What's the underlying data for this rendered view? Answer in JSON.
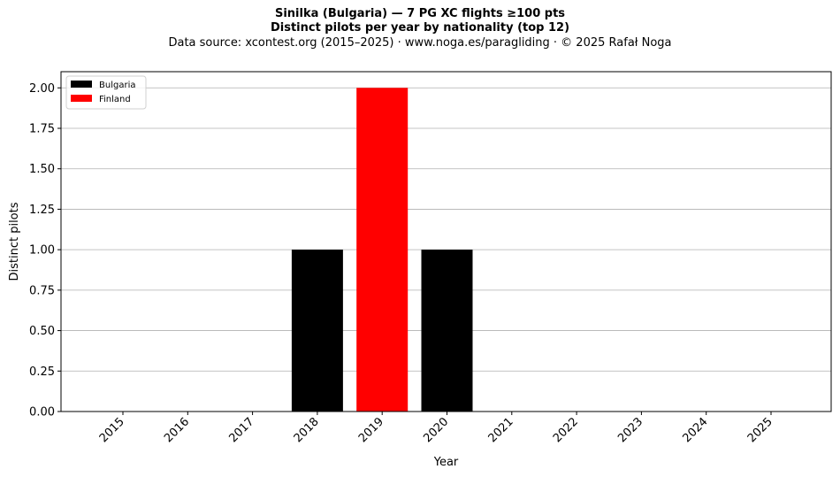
{
  "header": {
    "title": "Sinilka (Bulgaria)  —  7 PG XC flights ≥100 pts",
    "subtitle": "Distinct pilots per year by nationality (top 12)",
    "source": "Data source: xcontest.org (2015–2025)  ·  www.noga.es/paragliding  ·  © 2025 Rafał Noga"
  },
  "chart_data": {
    "type": "bar",
    "stacked": true,
    "categories": [
      "2015",
      "2016",
      "2017",
      "2018",
      "2019",
      "2020",
      "2021",
      "2022",
      "2023",
      "2024",
      "2025"
    ],
    "series": [
      {
        "name": "Bulgaria",
        "color": "#000000",
        "values": [
          0,
          0,
          0,
          1,
          0,
          1,
          0,
          0,
          0,
          0,
          0
        ]
      },
      {
        "name": "Finland",
        "color": "#ff0000",
        "values": [
          0,
          0,
          0,
          0,
          2,
          0,
          0,
          0,
          0,
          0,
          0
        ]
      }
    ],
    "xlabel": "Year",
    "ylabel": "Distinct pilots",
    "ylim": [
      0,
      2.1
    ],
    "yticks": [
      "0.00",
      "0.25",
      "0.50",
      "0.75",
      "1.00",
      "1.25",
      "1.50",
      "1.75",
      "2.00"
    ],
    "grid": "y-axis",
    "legend_position": "top-left"
  }
}
